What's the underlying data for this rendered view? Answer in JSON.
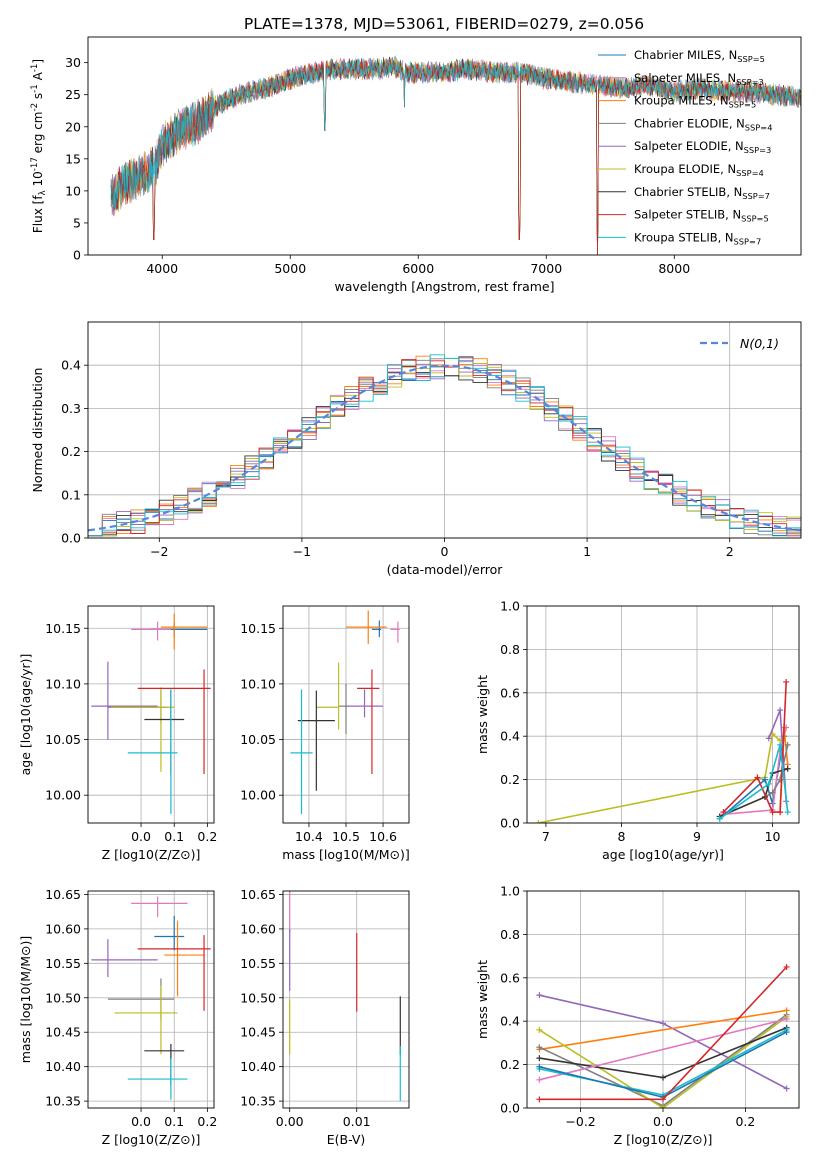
{
  "figure": {
    "title": "PLATE=1378, MJD=53061, FIBERID=0279, z=0.056"
  },
  "chart_data": [
    {
      "id": "spectrum",
      "type": "line",
      "xlabel": "wavelength [Angstrom, rest frame]",
      "ylabel": "Flux [f_λ 10^-17 erg cm^-2 s^-1 A^-1]",
      "xlim": [
        3420,
        8990
      ],
      "ylim": [
        0,
        34
      ],
      "xticks": [
        4000,
        5000,
        6000,
        7000,
        8000
      ],
      "yticks": [
        0,
        5,
        10,
        15,
        20,
        25,
        30
      ],
      "grid": false,
      "legend": "right",
      "continuum": {
        "x": [
          3600,
          3700,
          3800,
          3900,
          3950,
          4000,
          4100,
          4200,
          4300,
          4400,
          4500,
          4600,
          4700,
          4800,
          4900,
          5000,
          5100,
          5200,
          5300,
          5400,
          5500,
          5600,
          5700,
          5800,
          5900,
          6000,
          6200,
          6400,
          6600,
          6800,
          7000,
          7200,
          7400,
          7600,
          7800,
          8000,
          8200,
          8400,
          8600,
          8800,
          8990
        ],
        "y": [
          9,
          11,
          12,
          13,
          14,
          17,
          19,
          20,
          21,
          23,
          24,
          25,
          25.5,
          26,
          26.5,
          27.5,
          28,
          28.5,
          29,
          29,
          29,
          29,
          29,
          29.5,
          28.5,
          28.5,
          28.5,
          29,
          28.5,
          28.5,
          27.5,
          27,
          26.5,
          26,
          26.5,
          25.5,
          26,
          25.5,
          25.5,
          25,
          24.5
        ]
      },
      "dips": [
        {
          "x": 3934,
          "y": 0
        },
        {
          "x": 5270,
          "y": 17
        },
        {
          "x": 5892,
          "y": 23
        },
        {
          "x": 6790,
          "y": 0
        },
        {
          "x": 7400,
          "y": 0
        }
      ],
      "series": [
        {
          "name": "Chabrier MILES, N_SSP=5",
          "color": "#1f77b4"
        },
        {
          "name": "Salpeter MILES, N_SSP=3",
          "color": "#e377c2"
        },
        {
          "name": "Kroupa MILES, N_SSP=5",
          "color": "#ff7f0e"
        },
        {
          "name": "Chabrier ELODIE, N_SSP=4",
          "color": "#7f7f7f"
        },
        {
          "name": "Salpeter ELODIE, N_SSP=3",
          "color": "#9467bd"
        },
        {
          "name": "Kroupa ELODIE, N_SSP=4",
          "color": "#bcbd22"
        },
        {
          "name": "Chabrier STELIB, N_SSP=7",
          "color": "#333333"
        },
        {
          "name": "Salpeter STELIB, N_SSP=5",
          "color": "#d62728"
        },
        {
          "name": "Kroupa STELIB, N_SSP=7",
          "color": "#17becf"
        }
      ]
    },
    {
      "id": "residuals",
      "type": "histogram",
      "xlabel": "(data-model)/error",
      "ylabel": "Normed distribution",
      "xlim": [
        -2.5,
        2.5
      ],
      "ylim": [
        0,
        0.5
      ],
      "xticks": [
        -2,
        -1,
        0,
        1,
        2
      ],
      "yticks": [
        0.0,
        0.1,
        0.2,
        0.3,
        0.4
      ],
      "grid": true,
      "legend": "top-right",
      "legend_entry": "N(0,1)",
      "bin_width": 0.1,
      "series_colors": [
        "#1f77b4",
        "#e377c2",
        "#ff7f0e",
        "#7f7f7f",
        "#9467bd",
        "#bcbd22",
        "#333333",
        "#d62728",
        "#17becf"
      ],
      "gaussian_color": "#5588dd"
    },
    {
      "id": "age-vs-Z",
      "type": "errorbar",
      "xlabel": "Z [log10(Z/Z⊙)]",
      "ylabel": "age  [log10(age/yr)]",
      "xlim": [
        -0.16,
        0.22
      ],
      "ylim": [
        9.975,
        10.17
      ],
      "xticks": [
        0.0,
        0.1,
        0.2
      ],
      "yticks": [
        10.0,
        10.05,
        10.1,
        10.15
      ],
      "grid": true,
      "points": [
        {
          "color": "#1f77b4",
          "x": 0.1,
          "xerr": [
            0.07,
            0.1
          ],
          "y": 10.149,
          "yerr": [
            0.007,
            0.006
          ]
        },
        {
          "color": "#e377c2",
          "x": 0.05,
          "xerr": [
            0.08,
            0.04
          ],
          "y": 10.149,
          "yerr": [
            0.01,
            0.007
          ]
        },
        {
          "color": "#ff7f0e",
          "x": 0.1,
          "xerr": [
            0.04,
            0.1
          ],
          "y": 10.151,
          "yerr": [
            0.02,
            0.012
          ]
        },
        {
          "color": "#7f7f7f",
          "x": 0.06,
          "xerr": [
            0.16,
            0.02
          ],
          "y": 10.079,
          "yerr": [
            0.015,
            0.015
          ]
        },
        {
          "color": "#9467bd",
          "x": -0.1,
          "xerr": [
            0.05,
            0.15
          ],
          "y": 10.08,
          "yerr": [
            0.03,
            0.04
          ]
        },
        {
          "color": "#bcbd22",
          "x": 0.06,
          "xerr": [
            0.15,
            0.04
          ],
          "y": 10.079,
          "yerr": [
            0.058,
            0.018
          ]
        },
        {
          "color": "#333333",
          "x": 0.09,
          "xerr": [
            0.08,
            0.04
          ],
          "y": 10.068,
          "yerr": [
            0.05,
            0.027
          ]
        },
        {
          "color": "#d62728",
          "x": 0.19,
          "xerr": [
            0.2,
            0.02
          ],
          "y": 10.096,
          "yerr": [
            0.077,
            0.017
          ]
        },
        {
          "color": "#17becf",
          "x": 0.09,
          "xerr": [
            0.13,
            0.02
          ],
          "y": 10.038,
          "yerr": [
            0.055,
            0.057
          ]
        }
      ]
    },
    {
      "id": "age-vs-mass",
      "type": "errorbar",
      "xlabel": "mass [log10(M/M⊙)]",
      "xlim": [
        10.33,
        10.67
      ],
      "ylim": [
        9.975,
        10.17
      ],
      "xticks": [
        10.4,
        10.5,
        10.6
      ],
      "yticks": [
        10.0,
        10.05,
        10.1,
        10.15
      ],
      "grid": true,
      "points": [
        {
          "color": "#1f77b4",
          "x": 10.59,
          "xerr": [
            0.02,
            0.005
          ],
          "y": 10.149,
          "yerr": [
            0.007,
            0.008
          ]
        },
        {
          "color": "#e377c2",
          "x": 10.64,
          "xerr": [
            0.02,
            0.005
          ],
          "y": 10.149,
          "yerr": [
            0.012,
            0.007
          ]
        },
        {
          "color": "#ff7f0e",
          "x": 10.56,
          "xerr": [
            0.06,
            0.05
          ],
          "y": 10.151,
          "yerr": [
            0.015,
            0.015
          ]
        },
        {
          "color": "#7f7f7f",
          "x": 10.5,
          "xerr": [
            0.02,
            0.005
          ],
          "y": 10.08,
          "yerr": [
            0.025,
            0.02
          ]
        },
        {
          "color": "#9467bd",
          "x": 10.55,
          "xerr": [
            0.05,
            0.05
          ],
          "y": 10.08,
          "yerr": [
            0.01,
            0.015
          ]
        },
        {
          "color": "#bcbd22",
          "x": 10.48,
          "xerr": [
            0.06,
            0.0
          ],
          "y": 10.079,
          "yerr": [
            0.02,
            0.04
          ]
        },
        {
          "color": "#333333",
          "x": 10.42,
          "xerr": [
            0.05,
            0.05
          ],
          "y": 10.067,
          "yerr": [
            0.063,
            0.027
          ]
        },
        {
          "color": "#d62728",
          "x": 10.57,
          "xerr": [
            0.04,
            0.02
          ],
          "y": 10.096,
          "yerr": [
            0.077,
            0.017
          ]
        },
        {
          "color": "#17becf",
          "x": 10.38,
          "xerr": [
            0.03,
            0.03
          ],
          "y": 10.038,
          "yerr": [
            0.055,
            0.057
          ]
        }
      ]
    },
    {
      "id": "weight-vs-age",
      "type": "line",
      "xlabel": "age  [log10(age/yr)]",
      "ylabel": "mass weight",
      "xlim": [
        6.75,
        10.35
      ],
      "ylim": [
        0,
        1
      ],
      "xticks": [
        7,
        8,
        9,
        10
      ],
      "yticks": [
        0.0,
        0.2,
        0.4,
        0.6,
        0.8,
        1.0
      ],
      "grid": true,
      "series": [
        {
          "color": "#bcbd22",
          "x": [
            6.9,
            9.9,
            10.0,
            10.1
          ],
          "y": [
            0.0,
            0.21,
            0.41,
            0.38
          ]
        },
        {
          "color": "#1f77b4",
          "x": [
            9.3,
            9.9,
            10.0,
            10.15
          ],
          "y": [
            0.02,
            0.2,
            0.09,
            0.4
          ]
        },
        {
          "color": "#e377c2",
          "x": [
            9.35,
            10.0,
            10.1,
            10.18
          ],
          "y": [
            0.04,
            0.06,
            0.33,
            0.44
          ]
        },
        {
          "color": "#ff7f0e",
          "x": [
            10.1,
            10.15,
            10.2
          ],
          "y": [
            0.05,
            0.44,
            0.27
          ]
        },
        {
          "color": "#7f7f7f",
          "x": [
            9.9,
            10.0,
            10.1,
            10.2
          ],
          "y": [
            0.12,
            0.14,
            0.2,
            0.36
          ]
        },
        {
          "color": "#9467bd",
          "x": [
            9.95,
            10.1,
            10.18
          ],
          "y": [
            0.39,
            0.52,
            0.1
          ]
        },
        {
          "color": "#333333",
          "x": [
            9.3,
            9.9,
            10.0,
            10.2
          ],
          "y": [
            0.03,
            0.12,
            0.23,
            0.25
          ]
        },
        {
          "color": "#d62728",
          "x": [
            9.35,
            9.8,
            10.0,
            10.1,
            10.18
          ],
          "y": [
            0.05,
            0.21,
            0.05,
            0.05,
            0.65
          ]
        },
        {
          "color": "#17becf",
          "x": [
            9.3,
            9.95,
            10.1,
            10.2
          ],
          "y": [
            0.02,
            0.18,
            0.36,
            0.05
          ]
        }
      ]
    },
    {
      "id": "mass-vs-Z",
      "type": "errorbar",
      "xlabel": "Z [log10(Z/Z⊙)]",
      "ylabel": "mass [log10(M/M⊙)]",
      "xlim": [
        -0.16,
        0.22
      ],
      "ylim": [
        10.34,
        10.655
      ],
      "xticks": [
        0.0,
        0.1,
        0.2
      ],
      "yticks": [
        10.35,
        10.4,
        10.45,
        10.5,
        10.55,
        10.6,
        10.65
      ],
      "grid": true,
      "points": [
        {
          "color": "#1f77b4",
          "x": 0.1,
          "xerr": [
            0.06,
            0.03
          ],
          "y": 10.589,
          "yerr": [
            0.02,
            0.03
          ]
        },
        {
          "color": "#e377c2",
          "x": 0.05,
          "xerr": [
            0.08,
            0.09
          ],
          "y": 10.637,
          "yerr": [
            0.02,
            0.01
          ]
        },
        {
          "color": "#ff7f0e",
          "x": 0.11,
          "xerr": [
            0.04,
            0.08
          ],
          "y": 10.562,
          "yerr": [
            0.06,
            0.05
          ]
        },
        {
          "color": "#7f7f7f",
          "x": 0.06,
          "xerr": [
            0.16,
            0.04
          ],
          "y": 10.498,
          "yerr": [
            0.03,
            0.03
          ]
        },
        {
          "color": "#9467bd",
          "x": -0.1,
          "xerr": [
            0.05,
            0.15
          ],
          "y": 10.555,
          "yerr": [
            0.025,
            0.03
          ]
        },
        {
          "color": "#bcbd22",
          "x": 0.06,
          "xerr": [
            0.14,
            0.05
          ],
          "y": 10.478,
          "yerr": [
            0.06,
            0.04
          ]
        },
        {
          "color": "#333333",
          "x": 0.09,
          "xerr": [
            0.08,
            0.04
          ],
          "y": 10.423,
          "yerr": [
            0.05,
            0.01
          ]
        },
        {
          "color": "#d62728",
          "x": 0.19,
          "xerr": [
            0.2,
            0.02
          ],
          "y": 10.571,
          "yerr": [
            0.09,
            0.02
          ]
        },
        {
          "color": "#17becf",
          "x": 0.09,
          "xerr": [
            0.13,
            0.05
          ],
          "y": 10.382,
          "yerr": [
            0.03,
            0.03
          ]
        }
      ]
    },
    {
      "id": "mass-vs-EBV",
      "type": "errorbar",
      "xlabel": "E(B-V)",
      "xlim": [
        -0.001,
        0.0178
      ],
      "ylim": [
        10.34,
        10.655
      ],
      "xticks": [
        0.0,
        0.01
      ],
      "yticks": [
        10.35,
        10.4,
        10.45,
        10.5,
        10.55,
        10.6,
        10.65
      ],
      "grid": true,
      "points": [
        {
          "color": "#e377c2",
          "x": 0.0,
          "xerr": [
            0,
            0
          ],
          "y": 10.615,
          "yerr": [
            0.02,
            0.04
          ]
        },
        {
          "color": "#9467bd",
          "x": 0.0,
          "xerr": [
            0,
            0
          ],
          "y": 10.555,
          "yerr": [
            0.045,
            0.045
          ]
        },
        {
          "color": "#bcbd22",
          "x": 0.0,
          "xerr": [
            0,
            0
          ],
          "y": 10.478,
          "yerr": [
            0.06,
            0.02
          ]
        },
        {
          "color": "#d62728",
          "x": 0.01,
          "xerr": [
            0,
            0
          ],
          "y": 10.537,
          "yerr": [
            0.057,
            0.057
          ]
        },
        {
          "color": "#333333",
          "x": 0.0165,
          "xerr": [
            0,
            0
          ],
          "y": 10.467,
          "yerr": [
            0.05,
            0.035
          ]
        },
        {
          "color": "#17becf",
          "x": 0.0165,
          "xerr": [
            0,
            0
          ],
          "y": 10.39,
          "yerr": [
            0.04,
            0.04
          ]
        }
      ]
    },
    {
      "id": "weight-vs-Z",
      "type": "line",
      "xlabel": "Z [log10(Z/Z⊙)]",
      "ylabel": "mass weight",
      "xlim": [
        -0.33,
        0.33
      ],
      "ylim": [
        0,
        1
      ],
      "xticks": [
        -0.2,
        0.0,
        0.2
      ],
      "yticks": [
        0.0,
        0.2,
        0.4,
        0.6,
        0.8,
        1.0
      ],
      "grid": true,
      "series": [
        {
          "color": "#9467bd",
          "x": [
            -0.3,
            0.0,
            0.3
          ],
          "y": [
            0.52,
            0.39,
            0.09
          ]
        },
        {
          "color": "#ff7f0e",
          "x": [
            -0.3,
            0.3
          ],
          "y": [
            0.27,
            0.45
          ]
        },
        {
          "color": "#7f7f7f",
          "x": [
            -0.3,
            0.0,
            0.3
          ],
          "y": [
            0.28,
            0.01,
            0.43
          ]
        },
        {
          "color": "#bcbd22",
          "x": [
            -0.3,
            0.0,
            0.3
          ],
          "y": [
            0.36,
            0.0,
            0.42
          ]
        },
        {
          "color": "#333333",
          "x": [
            -0.3,
            0.0,
            0.3
          ],
          "y": [
            0.23,
            0.14,
            0.37
          ]
        },
        {
          "color": "#e377c2",
          "x": [
            -0.3,
            0.3
          ],
          "y": [
            0.13,
            0.41
          ]
        },
        {
          "color": "#17becf",
          "x": [
            -0.3,
            0.0,
            0.3
          ],
          "y": [
            0.18,
            0.06,
            0.36
          ]
        },
        {
          "color": "#1f77b4",
          "x": [
            -0.3,
            0.0,
            0.3
          ],
          "y": [
            0.19,
            0.05,
            0.35
          ]
        },
        {
          "color": "#d62728",
          "x": [
            -0.3,
            0.0,
            0.3
          ],
          "y": [
            0.04,
            0.04,
            0.65
          ]
        }
      ]
    }
  ]
}
